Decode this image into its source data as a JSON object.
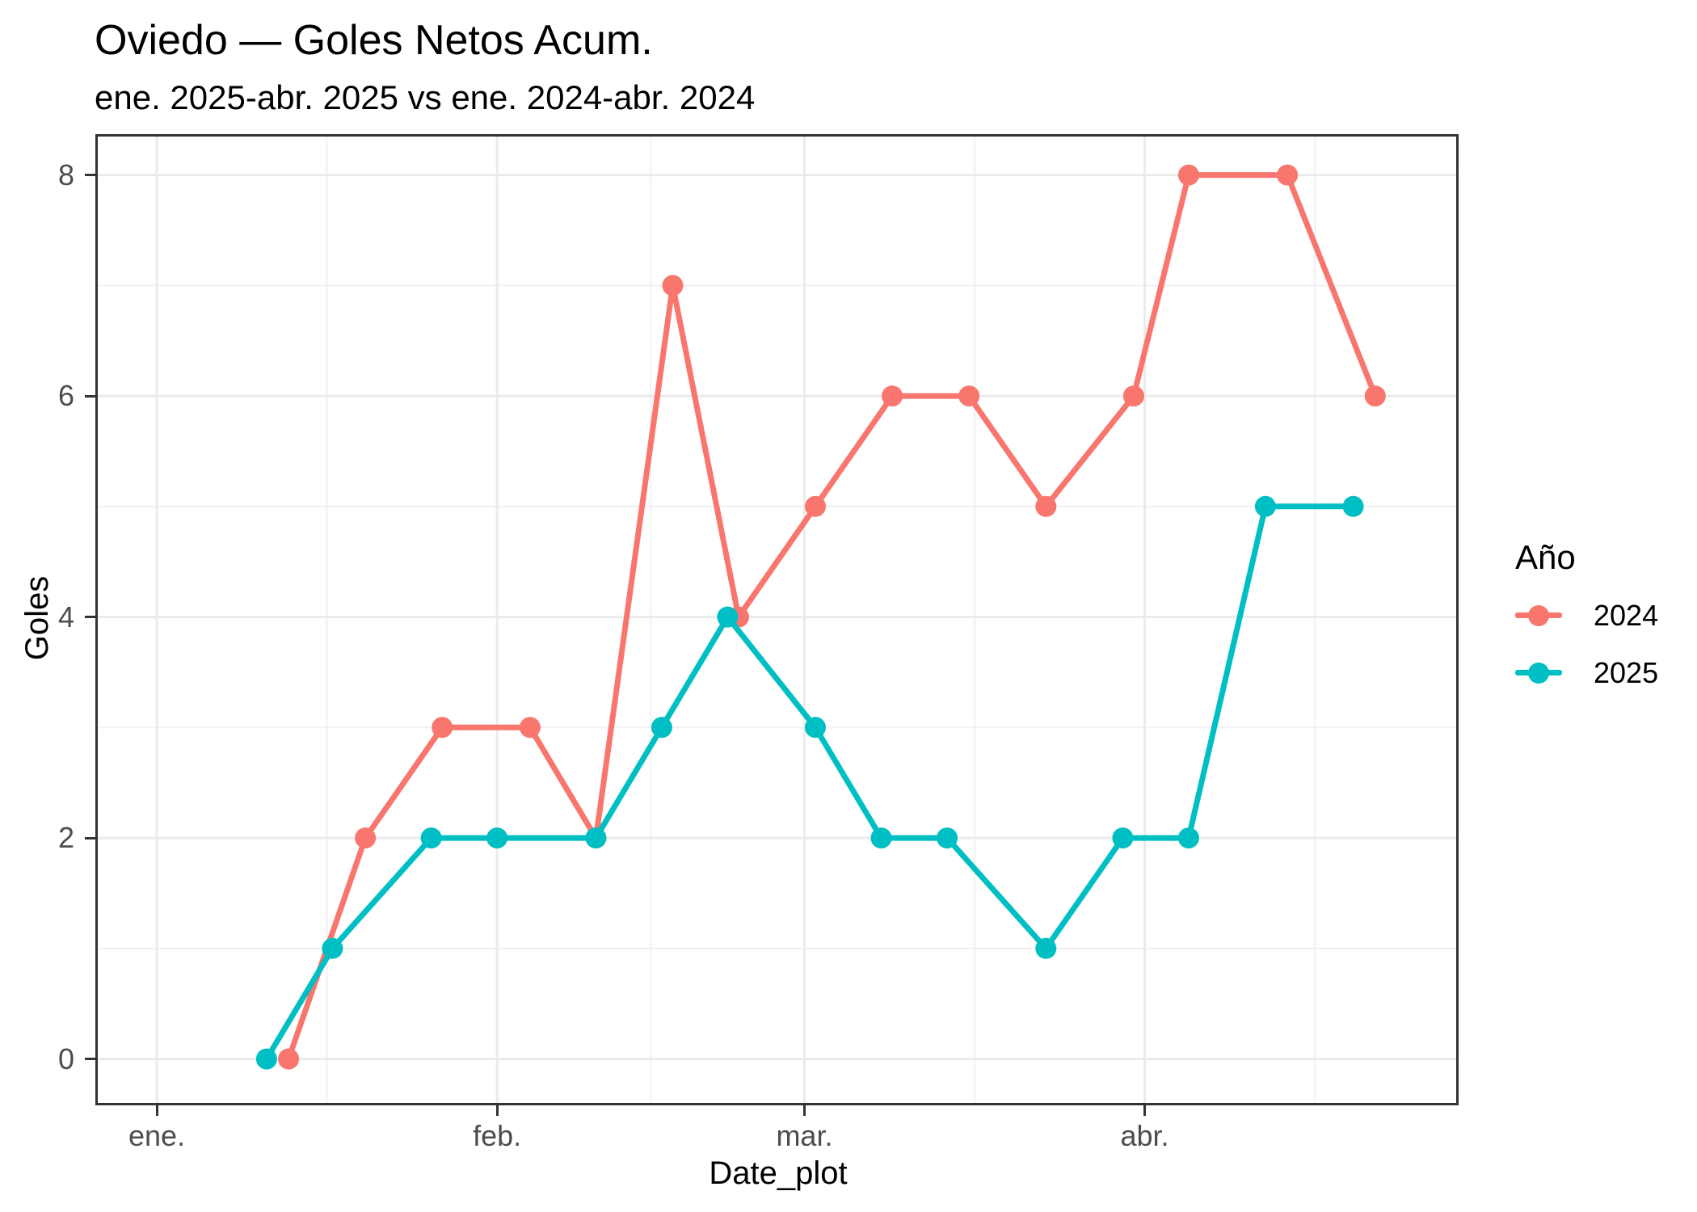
{
  "figure": {
    "title": "Oviedo — Goles Netos Acum.",
    "subtitle": "ene. 2025-abr. 2025 vs ene. 2024-abr. 2024"
  },
  "axes": {
    "x": {
      "title": "Date_plot",
      "tick_labels": [
        "ene.",
        "feb.",
        "mar.",
        "abr."
      ],
      "tick_positions_days": [
        0,
        31,
        59,
        90
      ],
      "minor_positions_days": [
        15.5,
        45,
        74.5,
        105.5
      ],
      "domain_days": [
        -5.6,
        118.6
      ]
    },
    "y": {
      "title": "Goles",
      "tick_labels": [
        "0",
        "2",
        "4",
        "6",
        "8"
      ],
      "tick_values": [
        0,
        2,
        4,
        6,
        8
      ],
      "minor_values": [
        1,
        3,
        5,
        7
      ],
      "domain": [
        -0.42,
        8.37
      ]
    }
  },
  "legend": {
    "title": "Año",
    "items": [
      {
        "label": "2024",
        "color": "#F8766D"
      },
      {
        "label": "2025",
        "color": "#00BFC4"
      }
    ]
  },
  "style": {
    "grid_major": "#EBEBEB",
    "grid_minor": "#F1F1F1",
    "panel_border": "#333333",
    "tick_color": "#333333",
    "tick_label_color": "#4D4D4D",
    "line_width": 7,
    "point_radius": 13
  },
  "chart_data": {
    "type": "line",
    "title": "Oviedo — Goles Netos Acum.",
    "subtitle": "ene. 2025-abr. 2025 vs ene. 2024-abr. 2024",
    "xlabel": "Date_plot",
    "ylabel": "Goles",
    "ylim": [
      0,
      8
    ],
    "x_unit": "days since Jan 1 (month axis: ene., feb., mar., abr.)",
    "legend_title": "Año",
    "legend_position": "right",
    "grid": true,
    "series": [
      {
        "name": "2024",
        "color": "#F8766D",
        "x_days": [
          12,
          19,
          26,
          34,
          40,
          47,
          53,
          60,
          67,
          74,
          81,
          89,
          94,
          103,
          111
        ],
        "values": [
          0,
          2,
          3,
          3,
          2,
          7,
          4,
          5,
          6,
          6,
          5,
          6,
          8,
          8,
          6
        ]
      },
      {
        "name": "2025",
        "color": "#00BFC4",
        "x_days": [
          10,
          16,
          25,
          31,
          40,
          46,
          52,
          60,
          66,
          72,
          81,
          88,
          94,
          101,
          109
        ],
        "values": [
          0,
          1,
          2,
          2,
          2,
          3,
          4,
          3,
          2,
          2,
          1,
          2,
          2,
          5,
          5
        ]
      }
    ]
  }
}
